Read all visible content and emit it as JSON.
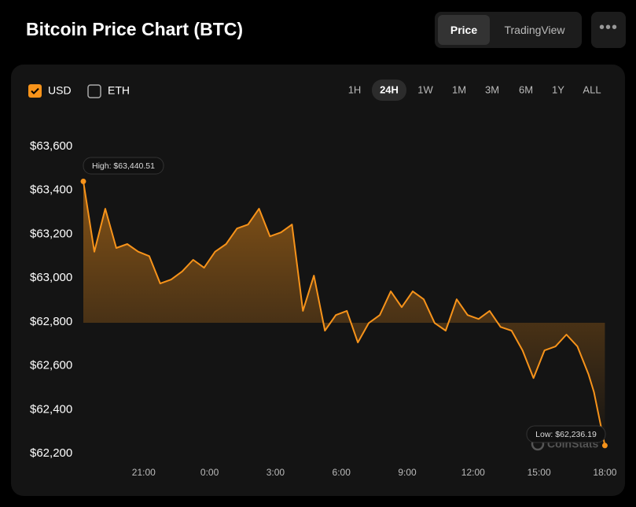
{
  "chart_data": {
    "type": "line",
    "title": "Bitcoin Price Chart (BTC)",
    "x": [
      "18:15",
      "18:45",
      "19:15",
      "19:45",
      "20:15",
      "20:45",
      "21:15",
      "21:45",
      "22:15",
      "22:45",
      "23:15",
      "23:45",
      "0:15",
      "0:45",
      "1:15",
      "1:45",
      "2:15",
      "2:45",
      "3:15",
      "3:45",
      "4:15",
      "4:45",
      "5:15",
      "5:45",
      "6:15",
      "6:45",
      "7:15",
      "7:45",
      "8:15",
      "8:45",
      "9:15",
      "9:45",
      "10:15",
      "10:45",
      "11:15",
      "11:45",
      "12:15",
      "12:45",
      "13:15",
      "13:45",
      "14:15",
      "14:45",
      "15:15",
      "15:45",
      "16:15",
      "16:45",
      "17:15",
      "17:30",
      "18:00"
    ],
    "series": [
      {
        "name": "USD",
        "color": "#f7931a",
        "values": [
          63440.51,
          63120,
          63316,
          63137,
          63155,
          63120,
          63100,
          62975,
          62993,
          63030,
          63083,
          63047,
          63120,
          63155,
          63226,
          63244,
          63316,
          63190,
          63208,
          63244,
          62850,
          63011,
          62760,
          62831,
          62850,
          62706,
          62795,
          62831,
          62939,
          62867,
          62939,
          62903,
          62795,
          62760,
          62903,
          62831,
          62813,
          62850,
          62777,
          62760,
          62670,
          62544,
          62670,
          62688,
          62742,
          62688,
          62562,
          62480,
          62236.19
        ]
      }
    ],
    "ylim": [
      62200,
      63600
    ],
    "yticks": [
      {
        "value": 62200,
        "label": "$62,200"
      },
      {
        "value": 62400,
        "label": "$62,400"
      },
      {
        "value": 62600,
        "label": "$62,600"
      },
      {
        "value": 62800,
        "label": "$62,800"
      },
      {
        "value": 63000,
        "label": "$63,000"
      },
      {
        "value": 63200,
        "label": "$63,200"
      },
      {
        "value": 63400,
        "label": "$63,400"
      },
      {
        "value": 63600,
        "label": "$63,600"
      }
    ],
    "xticks": [
      "21:00",
      "0:00",
      "3:00",
      "6:00",
      "9:00",
      "12:00",
      "15:00",
      "18:00"
    ],
    "annotations": {
      "high": "High: $63,440.51",
      "low": "Low: $62,236.19"
    },
    "watermark": "CoinStats"
  },
  "controls": {
    "tabs": [
      "Price",
      "TradingView"
    ],
    "currencies": [
      "USD",
      "ETH"
    ],
    "ranges": [
      "1H",
      "24H",
      "1W",
      "1M",
      "3M",
      "6M",
      "1Y",
      "ALL"
    ]
  }
}
